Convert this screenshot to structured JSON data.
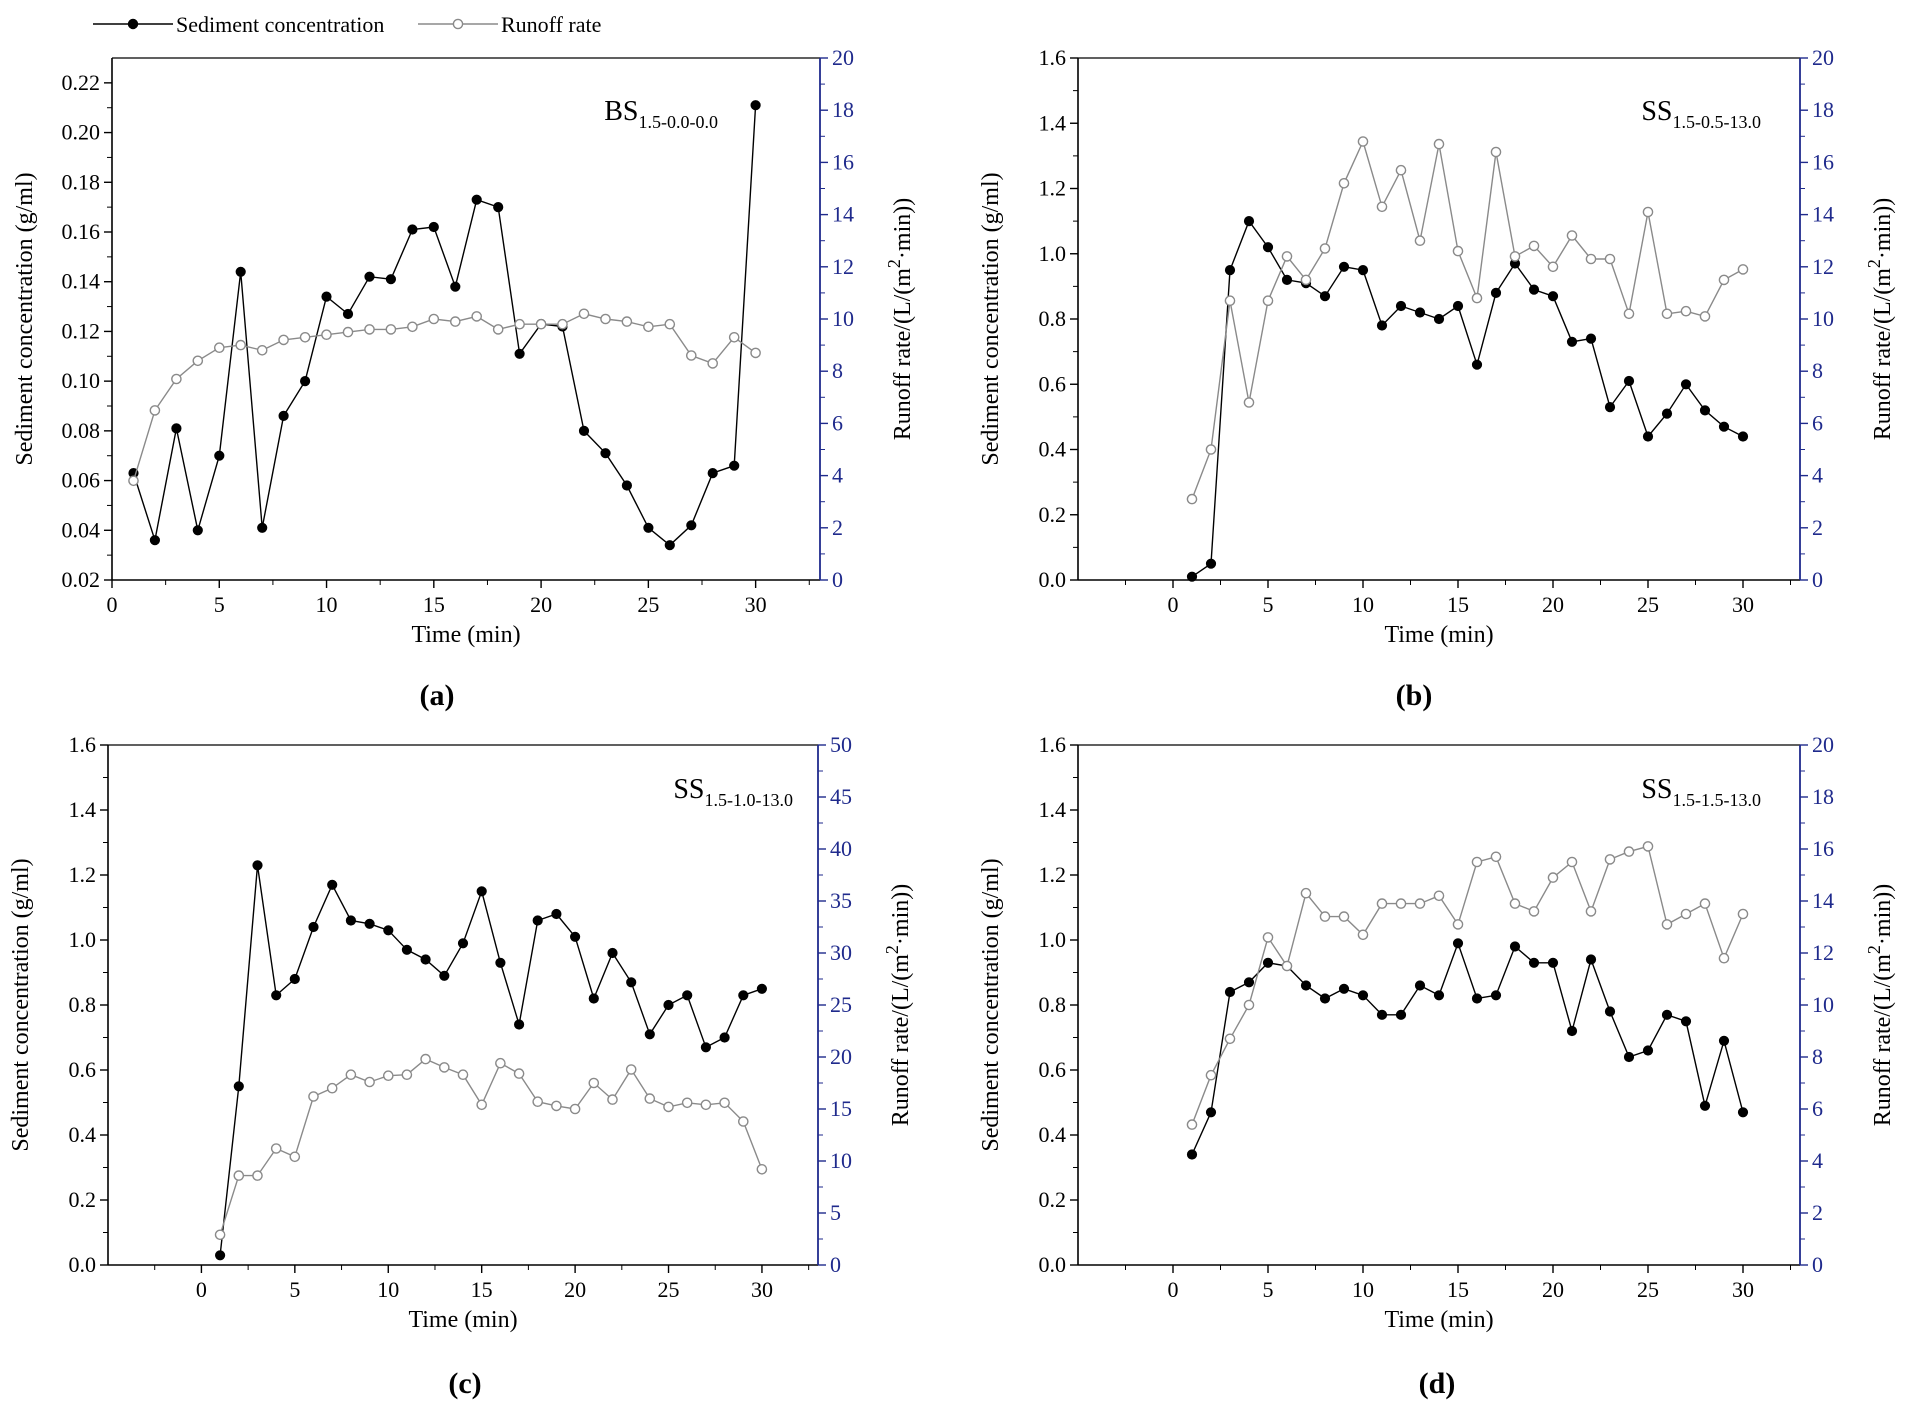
{
  "legend": {
    "sediment_label": "Sediment concentration",
    "runoff_label": "Runoff rate"
  },
  "colors": {
    "sediment": "#000000",
    "runoff": "#8a8a8a",
    "right_axis": "#1f2a8c",
    "axis": "#000000"
  },
  "chart_data": [
    {
      "id": "a",
      "type": "line",
      "panel_label": "(a)",
      "annotation_main": "BS",
      "annotation_sub": "1.5-0.0-0.0",
      "xlabel": "Time (min)",
      "ylabel_left": "Sediment concentration (g/ml)",
      "ylabel_right_pre": "Runoff rate/(L/(m",
      "ylabel_right_sup": "2",
      "ylabel_right_post": "·min))",
      "xlim": [
        0,
        33
      ],
      "ylim_left": [
        0.02,
        0.23
      ],
      "ylim_right": [
        0,
        20
      ],
      "xticks": [
        0,
        5,
        10,
        15,
        20,
        25,
        30
      ],
      "yticks_left": [
        0.02,
        0.04,
        0.06,
        0.08,
        0.1,
        0.12,
        0.14,
        0.16,
        0.18,
        0.2,
        0.22
      ],
      "yticks_left_labels": [
        "0.02",
        "0.04",
        "0.06",
        "0.08",
        "0.10",
        "0.12",
        "0.14",
        "0.16",
        "0.18",
        "0.20",
        "0.22"
      ],
      "yticks_right": [
        0,
        2,
        4,
        6,
        8,
        10,
        12,
        14,
        16,
        18,
        20
      ],
      "x": [
        1,
        2,
        3,
        4,
        5,
        6,
        7,
        8,
        9,
        10,
        11,
        12,
        13,
        14,
        15,
        16,
        17,
        18,
        19,
        20,
        21,
        22,
        23,
        24,
        25,
        26,
        27,
        28,
        29,
        30
      ],
      "series": [
        {
          "name": "Sediment concentration",
          "axis": "left",
          "marker": "filled",
          "values": [
            0.063,
            0.036,
            0.081,
            0.04,
            0.07,
            0.144,
            0.041,
            0.086,
            0.1,
            0.134,
            0.127,
            0.142,
            0.141,
            0.161,
            0.162,
            0.138,
            0.173,
            0.17,
            0.111,
            0.123,
            0.122,
            0.08,
            0.071,
            0.058,
            0.041,
            0.034,
            0.042,
            0.063,
            0.066,
            0.211
          ]
        },
        {
          "name": "Runoff rate",
          "axis": "right",
          "marker": "hollow",
          "values": [
            3.8,
            6.5,
            7.7,
            8.4,
            8.9,
            9.0,
            8.8,
            9.2,
            9.3,
            9.4,
            9.5,
            9.6,
            9.6,
            9.7,
            10.0,
            9.9,
            10.1,
            9.6,
            9.8,
            9.8,
            9.8,
            10.2,
            10.0,
            9.9,
            9.7,
            9.8,
            8.6,
            8.3,
            9.3,
            8.7
          ]
        }
      ]
    },
    {
      "id": "b",
      "type": "line",
      "panel_label": "(b)",
      "annotation_main": "SS",
      "annotation_sub": "1.5-0.5-13.0",
      "xlabel": "Time (min)",
      "ylabel_left": "Sediment concentration (g/ml)",
      "ylabel_right_pre": "Runoff rate/(L/(m",
      "ylabel_right_sup": "2",
      "ylabel_right_post": "·min))",
      "xlim": [
        -5,
        33
      ],
      "ylim_left": [
        0,
        1.6
      ],
      "ylim_right": [
        0,
        20
      ],
      "xticks": [
        0,
        5,
        10,
        15,
        20,
        25,
        30
      ],
      "yticks_left": [
        0,
        0.2,
        0.4,
        0.6,
        0.8,
        1.0,
        1.2,
        1.4,
        1.6
      ],
      "yticks_left_labels": [
        "0.0",
        "0.2",
        "0.4",
        "0.6",
        "0.8",
        "1.0",
        "1.2",
        "1.4",
        "1.6"
      ],
      "yticks_right": [
        0,
        2,
        4,
        6,
        8,
        10,
        12,
        14,
        16,
        18,
        20
      ],
      "x": [
        1,
        2,
        3,
        4,
        5,
        6,
        7,
        8,
        9,
        10,
        11,
        12,
        13,
        14,
        15,
        16,
        17,
        18,
        19,
        20,
        21,
        22,
        23,
        24,
        25,
        26,
        27,
        28,
        29,
        30
      ],
      "series": [
        {
          "name": "Sediment concentration",
          "axis": "left",
          "marker": "filled",
          "values": [
            0.01,
            0.05,
            0.95,
            1.1,
            1.02,
            0.92,
            0.91,
            0.87,
            0.96,
            0.95,
            0.78,
            0.84,
            0.82,
            0.8,
            0.84,
            0.66,
            0.88,
            0.97,
            0.89,
            0.87,
            0.73,
            0.74,
            0.53,
            0.61,
            0.44,
            0.51,
            0.6,
            0.52,
            0.47,
            0.44
          ]
        },
        {
          "name": "Runoff rate",
          "axis": "right",
          "marker": "hollow",
          "values": [
            3.1,
            5.0,
            10.7,
            6.8,
            10.7,
            12.4,
            11.5,
            12.7,
            15.2,
            16.8,
            14.3,
            15.7,
            13.0,
            16.7,
            12.6,
            10.8,
            16.4,
            12.4,
            12.8,
            12.0,
            13.2,
            12.3,
            12.3,
            10.2,
            14.1,
            10.2,
            10.3,
            10.1,
            11.5,
            11.9
          ]
        }
      ]
    },
    {
      "id": "c",
      "type": "line",
      "panel_label": "(c)",
      "annotation_main": "SS",
      "annotation_sub": "1.5-1.0-13.0",
      "xlabel": "Time (min)",
      "ylabel_left": "Sediment concentration (g/ml)",
      "ylabel_right_pre": "Runoff rate/(L/(m",
      "ylabel_right_sup": "2",
      "ylabel_right_post": "·min))",
      "xlim": [
        -5,
        33
      ],
      "ylim_left": [
        0,
        1.6
      ],
      "ylim_right": [
        0,
        50
      ],
      "xticks": [
        0,
        5,
        10,
        15,
        20,
        25,
        30
      ],
      "yticks_left": [
        0,
        0.2,
        0.4,
        0.6,
        0.8,
        1.0,
        1.2,
        1.4,
        1.6
      ],
      "yticks_left_labels": [
        "0.0",
        "0.2",
        "0.4",
        "0.6",
        "0.8",
        "1.0",
        "1.2",
        "1.4",
        "1.6"
      ],
      "yticks_right": [
        0,
        5,
        10,
        15,
        20,
        25,
        30,
        35,
        40,
        45,
        50
      ],
      "x": [
        1,
        2,
        3,
        4,
        5,
        6,
        7,
        8,
        9,
        10,
        11,
        12,
        13,
        14,
        15,
        16,
        17,
        18,
        19,
        20,
        21,
        22,
        23,
        24,
        25,
        26,
        27,
        28,
        29,
        30
      ],
      "series": [
        {
          "name": "Sediment concentration",
          "axis": "left",
          "marker": "filled",
          "values": [
            0.03,
            0.55,
            1.23,
            0.83,
            0.88,
            1.04,
            1.17,
            1.06,
            1.05,
            1.03,
            0.97,
            0.94,
            0.89,
            0.99,
            1.15,
            0.93,
            0.74,
            1.06,
            1.08,
            1.01,
            0.82,
            0.96,
            0.87,
            0.71,
            0.8,
            0.83,
            0.67,
            0.7,
            0.83,
            0.85
          ]
        },
        {
          "name": "Runoff rate",
          "axis": "right",
          "marker": "hollow",
          "values": [
            2.9,
            8.6,
            8.6,
            11.2,
            10.4,
            16.2,
            17.0,
            18.3,
            17.6,
            18.2,
            18.3,
            19.8,
            19.0,
            18.3,
            15.4,
            19.4,
            18.4,
            15.7,
            15.3,
            15.0,
            17.5,
            15.9,
            18.8,
            16.0,
            15.2,
            15.6,
            15.4,
            15.6,
            13.8,
            9.2
          ]
        }
      ]
    },
    {
      "id": "d",
      "type": "line",
      "panel_label": "(d)",
      "annotation_main": "SS",
      "annotation_sub": "1.5-1.5-13.0",
      "xlabel": "Time (min)",
      "ylabel_left": "Sediment concentration (g/ml)",
      "ylabel_right_pre": "Runoff rate/(L/(m",
      "ylabel_right_sup": "2",
      "ylabel_right_post": "·min))",
      "xlim": [
        -5,
        33
      ],
      "ylim_left": [
        0,
        1.6
      ],
      "ylim_right": [
        0,
        20
      ],
      "xticks": [
        0,
        5,
        10,
        15,
        20,
        25,
        30
      ],
      "yticks_left": [
        0,
        0.2,
        0.4,
        0.6,
        0.8,
        1.0,
        1.2,
        1.4,
        1.6
      ],
      "yticks_left_labels": [
        "0.0",
        "0.2",
        "0.4",
        "0.6",
        "0.8",
        "1.0",
        "1.2",
        "1.4",
        "1.6"
      ],
      "yticks_right": [
        0,
        2,
        4,
        6,
        8,
        10,
        12,
        14,
        16,
        18,
        20
      ],
      "x": [
        1,
        2,
        3,
        4,
        5,
        6,
        7,
        8,
        9,
        10,
        11,
        12,
        13,
        14,
        15,
        16,
        17,
        18,
        19,
        20,
        21,
        22,
        23,
        24,
        25,
        26,
        27,
        28,
        29,
        30
      ],
      "series": [
        {
          "name": "Sediment concentration",
          "axis": "left",
          "marker": "filled",
          "values": [
            0.34,
            0.47,
            0.84,
            0.87,
            0.93,
            0.92,
            0.86,
            0.82,
            0.85,
            0.83,
            0.77,
            0.77,
            0.86,
            0.83,
            0.99,
            0.82,
            0.83,
            0.98,
            0.93,
            0.93,
            0.72,
            0.94,
            0.78,
            0.64,
            0.66,
            0.77,
            0.75,
            0.49,
            0.69,
            0.47
          ]
        },
        {
          "name": "Runoff rate",
          "axis": "right",
          "marker": "hollow",
          "values": [
            5.4,
            7.3,
            8.7,
            10.0,
            12.6,
            11.5,
            14.3,
            13.4,
            13.4,
            12.7,
            13.9,
            13.9,
            13.9,
            14.2,
            13.1,
            15.5,
            15.7,
            13.9,
            13.6,
            14.9,
            15.5,
            13.6,
            15.6,
            15.9,
            16.1,
            13.1,
            13.5,
            13.9,
            11.8,
            13.5
          ]
        }
      ]
    }
  ]
}
